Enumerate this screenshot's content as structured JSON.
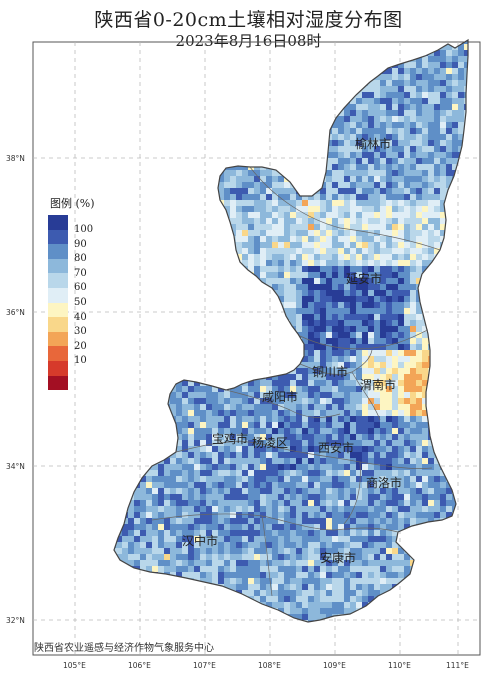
{
  "title": "陕西省0-20cm土壤相对湿度分布图",
  "subtitle": "2023年8月16日08时",
  "legend": {
    "title": "图例 (%)",
    "labels": [
      "100",
      "90",
      "80",
      "70",
      "60",
      "50",
      "40",
      "30",
      "20",
      "10"
    ],
    "colors": [
      "#283c96",
      "#3d5bb0",
      "#5f8fc7",
      "#8db8db",
      "#b9d7ea",
      "#e0eef6",
      "#fdf5c2",
      "#f9d78a",
      "#f3a557",
      "#e8673a",
      "#d63a2b",
      "#a30f23"
    ]
  },
  "cities": [
    "榆林市",
    "延安市",
    "铜川市",
    "渭南市",
    "咸阳市",
    "宝鸡市",
    "杨凌区",
    "西安市",
    "商洛市",
    "汉中市",
    "安康市"
  ],
  "lon_ticks": [
    "105°E",
    "106°E",
    "107°E",
    "108°E",
    "109°E",
    "110°E",
    "111°E"
  ],
  "lat_ticks": [
    "38°N",
    "36°N",
    "34°N",
    "32°N"
  ],
  "credit": "陕西省农业遥感与经济作物气象服务中心"
}
